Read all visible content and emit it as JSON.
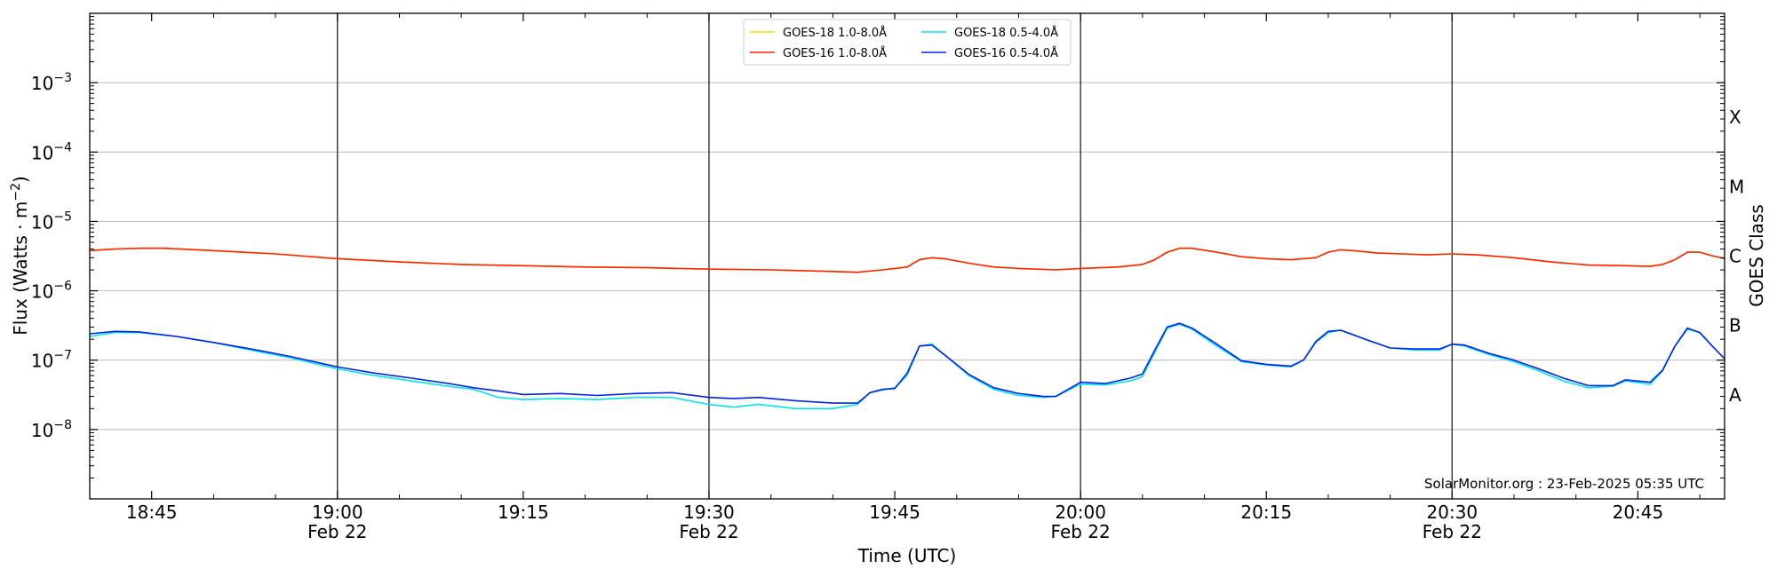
{
  "chart_data": {
    "type": "line",
    "xlabel": "Time (UTC)",
    "ylabel": "Flux (Watts · m^-2)",
    "y_scale": "log",
    "ylim": [
      1e-09,
      0.01
    ],
    "xlim": [
      "18:40",
      "20:52"
    ],
    "grid": "horizontal",
    "legend_position": "top-center",
    "x_ticks": [
      {
        "time": "18:45",
        "label": "18:45",
        "date": ""
      },
      {
        "time": "19:00",
        "label": "19:00",
        "date": "Feb 22"
      },
      {
        "time": "19:15",
        "label": "19:15",
        "date": ""
      },
      {
        "time": "19:30",
        "label": "19:30",
        "date": "Feb 22"
      },
      {
        "time": "19:45",
        "label": "19:45",
        "date": ""
      },
      {
        "time": "20:00",
        "label": "20:00",
        "date": "Feb 22"
      },
      {
        "time": "20:15",
        "label": "20:15",
        "date": ""
      },
      {
        "time": "20:30",
        "label": "20:30",
        "date": "Feb 22"
      },
      {
        "time": "20:45",
        "label": "20:45",
        "date": ""
      }
    ],
    "y_ticks": [
      {
        "value": 1e-08,
        "base": "10",
        "exp": "−8"
      },
      {
        "value": 1e-07,
        "base": "10",
        "exp": "−7"
      },
      {
        "value": 1e-06,
        "base": "10",
        "exp": "−6"
      },
      {
        "value": 1e-05,
        "base": "10",
        "exp": "−5"
      },
      {
        "value": 0.0001,
        "base": "10",
        "exp": "−4"
      },
      {
        "value": 0.001,
        "base": "10",
        "exp": "−3"
      }
    ],
    "vertical_markers": [
      "19:00",
      "19:30",
      "20:00",
      "20:30"
    ],
    "goes_class_title": "GOES Class",
    "goes_classes": [
      {
        "label": "A",
        "value": 3.16e-08
      },
      {
        "label": "B",
        "value": 3.16e-07
      },
      {
        "label": "C",
        "value": 3.16e-06
      },
      {
        "label": "M",
        "value": 3.16e-05
      },
      {
        "label": "X",
        "value": 0.000316
      }
    ],
    "series": [
      {
        "name": "GOES-18 1.0-8.0Å",
        "color": "#ffd700",
        "points": [
          [
            "18:40",
            3.8e-06
          ],
          [
            "18:42",
            4e-06
          ],
          [
            "18:44",
            4.1e-06
          ],
          [
            "18:46",
            4.1e-06
          ],
          [
            "18:50",
            3.8e-06
          ],
          [
            "18:55",
            3.4e-06
          ],
          [
            "19:00",
            2.9e-06
          ],
          [
            "19:05",
            2.6e-06
          ],
          [
            "19:10",
            2.4e-06
          ],
          [
            "19:15",
            2.3e-06
          ],
          [
            "19:20",
            2.2e-06
          ],
          [
            "19:25",
            2.15e-06
          ],
          [
            "19:30",
            2.05e-06
          ],
          [
            "19:35",
            2e-06
          ],
          [
            "19:40",
            1.9e-06
          ],
          [
            "19:42",
            1.85e-06
          ],
          [
            "19:44",
            2e-06
          ],
          [
            "19:46",
            2.2e-06
          ],
          [
            "19:47",
            2.8e-06
          ],
          [
            "19:48",
            3e-06
          ],
          [
            "19:49",
            2.9e-06
          ],
          [
            "19:51",
            2.5e-06
          ],
          [
            "19:53",
            2.2e-06
          ],
          [
            "19:55",
            2.1e-06
          ],
          [
            "19:58",
            2e-06
          ],
          [
            "20:00",
            2.1e-06
          ],
          [
            "20:03",
            2.2e-06
          ],
          [
            "20:05",
            2.4e-06
          ],
          [
            "20:06",
            2.8e-06
          ],
          [
            "20:07",
            3.6e-06
          ],
          [
            "20:08",
            4.1e-06
          ],
          [
            "20:09",
            4.1e-06
          ],
          [
            "20:11",
            3.6e-06
          ],
          [
            "20:13",
            3.1e-06
          ],
          [
            "20:15",
            2.9e-06
          ],
          [
            "20:17",
            2.8e-06
          ],
          [
            "20:19",
            3e-06
          ],
          [
            "20:20",
            3.6e-06
          ],
          [
            "20:21",
            3.9e-06
          ],
          [
            "20:22",
            3.8e-06
          ],
          [
            "20:24",
            3.5e-06
          ],
          [
            "20:26",
            3.4e-06
          ],
          [
            "20:28",
            3.3e-06
          ],
          [
            "20:30",
            3.4e-06
          ],
          [
            "20:32",
            3.3e-06
          ],
          [
            "20:35",
            3e-06
          ],
          [
            "20:38",
            2.6e-06
          ],
          [
            "20:41",
            2.35e-06
          ],
          [
            "20:44",
            2.3e-06
          ],
          [
            "20:46",
            2.25e-06
          ],
          [
            "20:47",
            2.4e-06
          ],
          [
            "20:48",
            2.8e-06
          ],
          [
            "20:49",
            3.6e-06
          ],
          [
            "20:50",
            3.6e-06
          ],
          [
            "20:51",
            3.2e-06
          ],
          [
            "20:52",
            2.9e-06
          ]
        ]
      },
      {
        "name": "GOES-16 1.0-8.0Å",
        "color": "#ff2200",
        "points": [
          [
            "18:40",
            3.8e-06
          ],
          [
            "18:42",
            4e-06
          ],
          [
            "18:44",
            4.1e-06
          ],
          [
            "18:46",
            4.1e-06
          ],
          [
            "18:50",
            3.8e-06
          ],
          [
            "18:55",
            3.4e-06
          ],
          [
            "19:00",
            2.9e-06
          ],
          [
            "19:05",
            2.6e-06
          ],
          [
            "19:10",
            2.4e-06
          ],
          [
            "19:15",
            2.3e-06
          ],
          [
            "19:20",
            2.2e-06
          ],
          [
            "19:25",
            2.15e-06
          ],
          [
            "19:30",
            2.05e-06
          ],
          [
            "19:35",
            2e-06
          ],
          [
            "19:40",
            1.9e-06
          ],
          [
            "19:42",
            1.85e-06
          ],
          [
            "19:44",
            2e-06
          ],
          [
            "19:46",
            2.2e-06
          ],
          [
            "19:47",
            2.8e-06
          ],
          [
            "19:48",
            3e-06
          ],
          [
            "19:49",
            2.9e-06
          ],
          [
            "19:51",
            2.5e-06
          ],
          [
            "19:53",
            2.2e-06
          ],
          [
            "19:55",
            2.1e-06
          ],
          [
            "19:58",
            2e-06
          ],
          [
            "20:00",
            2.1e-06
          ],
          [
            "20:03",
            2.2e-06
          ],
          [
            "20:05",
            2.4e-06
          ],
          [
            "20:06",
            2.8e-06
          ],
          [
            "20:07",
            3.6e-06
          ],
          [
            "20:08",
            4.1e-06
          ],
          [
            "20:09",
            4.1e-06
          ],
          [
            "20:11",
            3.6e-06
          ],
          [
            "20:13",
            3.1e-06
          ],
          [
            "20:15",
            2.9e-06
          ],
          [
            "20:17",
            2.8e-06
          ],
          [
            "20:19",
            3e-06
          ],
          [
            "20:20",
            3.6e-06
          ],
          [
            "20:21",
            3.9e-06
          ],
          [
            "20:22",
            3.8e-06
          ],
          [
            "20:24",
            3.5e-06
          ],
          [
            "20:26",
            3.4e-06
          ],
          [
            "20:28",
            3.3e-06
          ],
          [
            "20:30",
            3.4e-06
          ],
          [
            "20:32",
            3.3e-06
          ],
          [
            "20:35",
            3e-06
          ],
          [
            "20:38",
            2.6e-06
          ],
          [
            "20:41",
            2.35e-06
          ],
          [
            "20:44",
            2.3e-06
          ],
          [
            "20:46",
            2.25e-06
          ],
          [
            "20:47",
            2.4e-06
          ],
          [
            "20:48",
            2.8e-06
          ],
          [
            "20:49",
            3.6e-06
          ],
          [
            "20:50",
            3.6e-06
          ],
          [
            "20:51",
            3.2e-06
          ],
          [
            "20:52",
            2.9e-06
          ]
        ]
      },
      {
        "name": "GOES-18 0.5-4.0Å",
        "color": "#00e5ee",
        "points": [
          [
            "18:40",
            2.2e-07
          ],
          [
            "18:42",
            2.5e-07
          ],
          [
            "18:44",
            2.5e-07
          ],
          [
            "18:47",
            2.2e-07
          ],
          [
            "18:50",
            1.8e-07
          ],
          [
            "18:53",
            1.4e-07
          ],
          [
            "18:56",
            1.1e-07
          ],
          [
            "19:00",
            7.5e-08
          ],
          [
            "19:03",
            6e-08
          ],
          [
            "19:06",
            5e-08
          ],
          [
            "19:09",
            4.2e-08
          ],
          [
            "19:11",
            3.8e-08
          ],
          [
            "19:13",
            2.9e-08
          ],
          [
            "19:15",
            2.7e-08
          ],
          [
            "19:18",
            2.8e-08
          ],
          [
            "19:21",
            2.7e-08
          ],
          [
            "19:24",
            2.9e-08
          ],
          [
            "19:27",
            2.9e-08
          ],
          [
            "19:30",
            2.3e-08
          ],
          [
            "19:32",
            2.1e-08
          ],
          [
            "19:34",
            2.3e-08
          ],
          [
            "19:37",
            2e-08
          ],
          [
            "19:40",
            2e-08
          ],
          [
            "19:42",
            2.3e-08
          ],
          [
            "19:43",
            3.4e-08
          ],
          [
            "19:44",
            3.7e-08
          ],
          [
            "19:45",
            4e-08
          ],
          [
            "19:46",
            6e-08
          ],
          [
            "19:47",
            1.6e-07
          ],
          [
            "19:48",
            1.7e-07
          ],
          [
            "19:49",
            1.2e-07
          ],
          [
            "19:51",
            6e-08
          ],
          [
            "19:53",
            3.8e-08
          ],
          [
            "19:55",
            3.1e-08
          ],
          [
            "19:57",
            2.9e-08
          ],
          [
            "19:58",
            3e-08
          ],
          [
            "20:00",
            4.5e-08
          ],
          [
            "20:02",
            4.4e-08
          ],
          [
            "20:04",
            5e-08
          ],
          [
            "20:05",
            5.8e-08
          ],
          [
            "20:06",
            1.3e-07
          ],
          [
            "20:07",
            2.9e-07
          ],
          [
            "20:08",
            3.3e-07
          ],
          [
            "20:09",
            2.8e-07
          ],
          [
            "20:11",
            1.6e-07
          ],
          [
            "20:13",
            9.5e-08
          ],
          [
            "20:15",
            8.5e-08
          ],
          [
            "20:17",
            8e-08
          ],
          [
            "20:18",
            1e-07
          ],
          [
            "20:19",
            1.8e-07
          ],
          [
            "20:20",
            2.5e-07
          ],
          [
            "20:21",
            2.7e-07
          ],
          [
            "20:23",
            2e-07
          ],
          [
            "20:25",
            1.5e-07
          ],
          [
            "20:27",
            1.4e-07
          ],
          [
            "20:29",
            1.4e-07
          ],
          [
            "20:30",
            1.7e-07
          ],
          [
            "20:31",
            1.6e-07
          ],
          [
            "20:33",
            1.2e-07
          ],
          [
            "20:35",
            9.5e-08
          ],
          [
            "20:37",
            7e-08
          ],
          [
            "20:39",
            5e-08
          ],
          [
            "20:41",
            4e-08
          ],
          [
            "20:43",
            4.2e-08
          ],
          [
            "20:44",
            5e-08
          ],
          [
            "20:46",
            4.5e-08
          ],
          [
            "20:47",
            7e-08
          ],
          [
            "20:48",
            1.6e-07
          ],
          [
            "20:49",
            2.8e-07
          ],
          [
            "20:50",
            2.5e-07
          ],
          [
            "20:51",
            1.6e-07
          ],
          [
            "20:52",
            1.05e-07
          ]
        ]
      },
      {
        "name": "GOES-16 0.5-4.0Å",
        "color": "#0022ee",
        "points": [
          [
            "18:40",
            2.4e-07
          ],
          [
            "18:42",
            2.6e-07
          ],
          [
            "18:44",
            2.55e-07
          ],
          [
            "18:47",
            2.2e-07
          ],
          [
            "18:50",
            1.8e-07
          ],
          [
            "18:53",
            1.45e-07
          ],
          [
            "18:56",
            1.15e-07
          ],
          [
            "19:00",
            8e-08
          ],
          [
            "19:03",
            6.5e-08
          ],
          [
            "19:06",
            5.5e-08
          ],
          [
            "19:09",
            4.6e-08
          ],
          [
            "19:11",
            4e-08
          ],
          [
            "19:13",
            3.6e-08
          ],
          [
            "19:15",
            3.2e-08
          ],
          [
            "19:18",
            3.3e-08
          ],
          [
            "19:21",
            3.1e-08
          ],
          [
            "19:24",
            3.3e-08
          ],
          [
            "19:27",
            3.4e-08
          ],
          [
            "19:30",
            2.9e-08
          ],
          [
            "19:32",
            2.8e-08
          ],
          [
            "19:34",
            2.9e-08
          ],
          [
            "19:37",
            2.6e-08
          ],
          [
            "19:40",
            2.4e-08
          ],
          [
            "19:42",
            2.4e-08
          ],
          [
            "19:43",
            3.4e-08
          ],
          [
            "19:44",
            3.8e-08
          ],
          [
            "19:45",
            3.9e-08
          ],
          [
            "19:46",
            6.5e-08
          ],
          [
            "19:47",
            1.6e-07
          ],
          [
            "19:48",
            1.65e-07
          ],
          [
            "19:49",
            1.2e-07
          ],
          [
            "19:51",
            6.2e-08
          ],
          [
            "19:53",
            4e-08
          ],
          [
            "19:55",
            3.3e-08
          ],
          [
            "19:57",
            3e-08
          ],
          [
            "19:58",
            3e-08
          ],
          [
            "20:00",
            4.8e-08
          ],
          [
            "20:02",
            4.6e-08
          ],
          [
            "20:04",
            5.5e-08
          ],
          [
            "20:05",
            6.3e-08
          ],
          [
            "20:06",
            1.4e-07
          ],
          [
            "20:07",
            3e-07
          ],
          [
            "20:08",
            3.4e-07
          ],
          [
            "20:09",
            2.9e-07
          ],
          [
            "20:11",
            1.7e-07
          ],
          [
            "20:13",
            9.8e-08
          ],
          [
            "20:15",
            8.7e-08
          ],
          [
            "20:17",
            8.2e-08
          ],
          [
            "20:18",
            1e-07
          ],
          [
            "20:19",
            1.85e-07
          ],
          [
            "20:20",
            2.6e-07
          ],
          [
            "20:21",
            2.7e-07
          ],
          [
            "20:23",
            2e-07
          ],
          [
            "20:25",
            1.5e-07
          ],
          [
            "20:27",
            1.45e-07
          ],
          [
            "20:29",
            1.45e-07
          ],
          [
            "20:30",
            1.7e-07
          ],
          [
            "20:31",
            1.65e-07
          ],
          [
            "20:33",
            1.25e-07
          ],
          [
            "20:35",
            1e-07
          ],
          [
            "20:37",
            7.5e-08
          ],
          [
            "20:39",
            5.5e-08
          ],
          [
            "20:41",
            4.3e-08
          ],
          [
            "20:43",
            4.3e-08
          ],
          [
            "20:44",
            5.2e-08
          ],
          [
            "20:46",
            4.8e-08
          ],
          [
            "20:47",
            7.2e-08
          ],
          [
            "20:48",
            1.6e-07
          ],
          [
            "20:49",
            2.9e-07
          ],
          [
            "20:50",
            2.5e-07
          ],
          [
            "20:51",
            1.6e-07
          ],
          [
            "20:52",
            1.05e-07
          ]
        ]
      }
    ],
    "annotation": "SolarMonitor.org : 23-Feb-2025 05:35 UTC"
  }
}
